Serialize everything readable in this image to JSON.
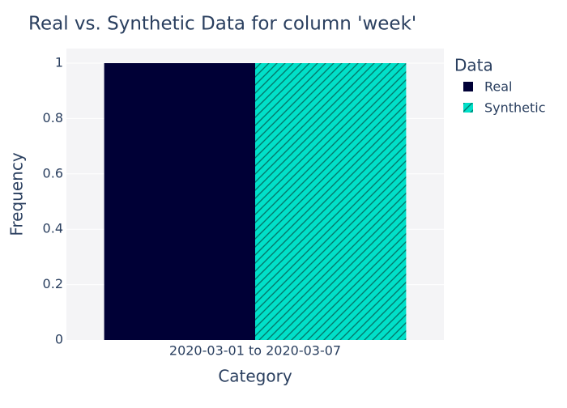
{
  "chart_data": {
    "type": "bar",
    "title": "Real vs. Synthetic Data for column 'week'",
    "xlabel": "Category",
    "ylabel": "Frequency",
    "categories": [
      "2020-03-01 to 2020-03-07"
    ],
    "series": [
      {
        "name": "Real",
        "values": [
          1
        ],
        "color": "#000036",
        "pattern": "solid"
      },
      {
        "name": "Synthetic",
        "values": [
          1
        ],
        "color": "#01e0c9",
        "pattern": "diagonal-hatch"
      }
    ],
    "ylim": [
      0,
      1
    ],
    "yticks": [
      "0",
      "0.2",
      "0.4",
      "0.6",
      "0.8",
      "1"
    ],
    "grid": true,
    "legend": {
      "title": "Data",
      "placement": "top-right"
    },
    "colors": {
      "plot_background": "#f4f4f6",
      "grid": "#ffffff",
      "text": "#2a3f5f"
    }
  }
}
